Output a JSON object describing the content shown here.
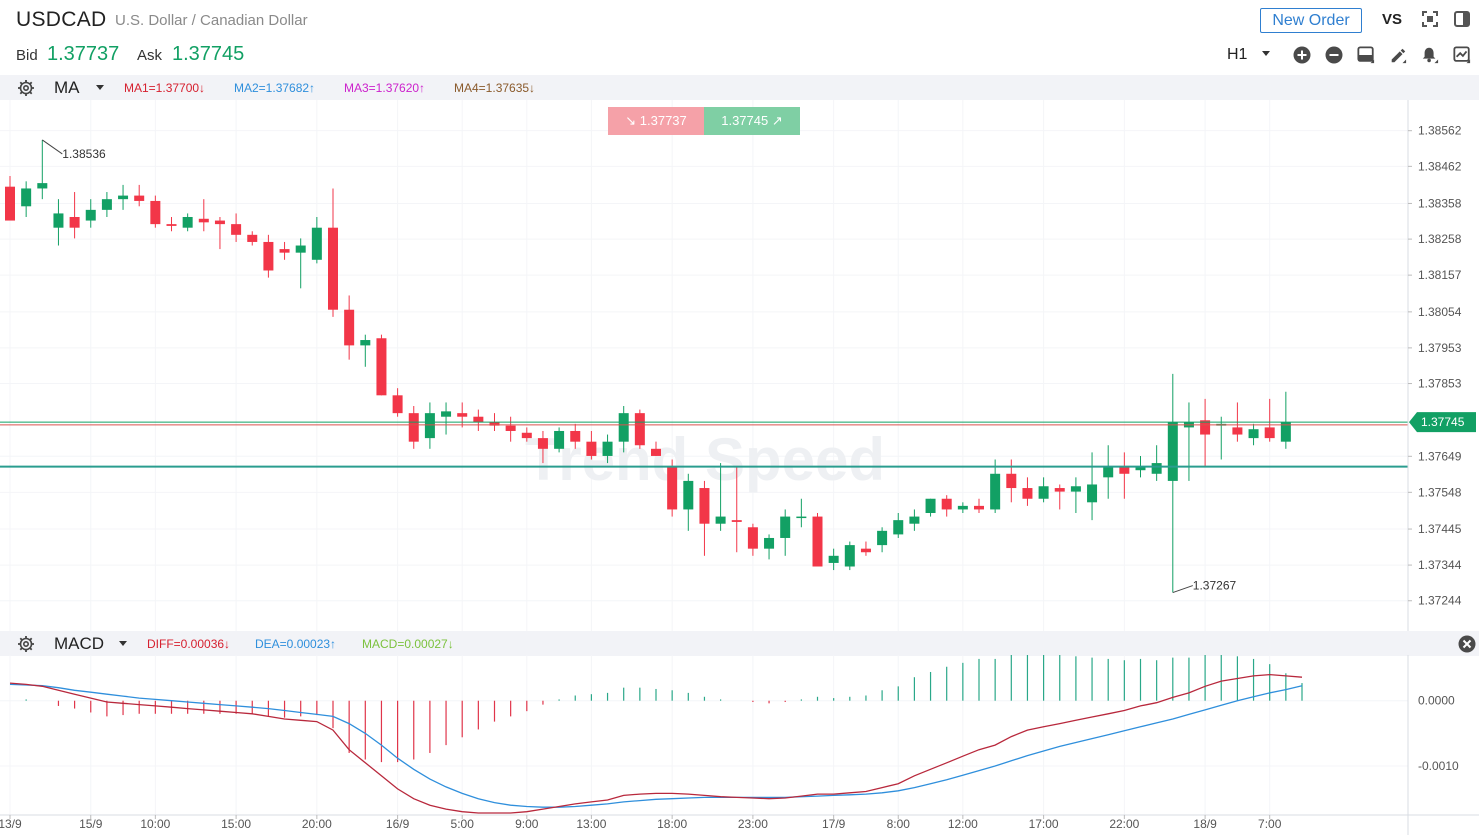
{
  "header": {
    "symbol": "USDCAD",
    "description": "U.S. Dollar / Canadian Dollar",
    "bid_label": "Bid",
    "bid_value": "1.37737",
    "ask_label": "Ask",
    "ask_value": "1.37745",
    "new_order_label": "New Order",
    "vs_label": "VS",
    "timeframe": "H1",
    "icons": [
      "fullscreen-icon",
      "panel-toggle-icon",
      "zoom-in-icon",
      "zoom-out-icon",
      "chart-type-icon",
      "draw-pen-icon",
      "alert-bell-icon",
      "indicator-icon"
    ]
  },
  "quote_box": {
    "bid": "1.37737",
    "ask": "1.37745"
  },
  "ma_bar": {
    "name": "MA",
    "ma1": "MA1=1.37700↓",
    "ma2": "MA2=1.37682↑",
    "ma3": "MA3=1.37620↑",
    "ma4": "MA4=1.37635↓"
  },
  "macd_bar": {
    "name": "MACD",
    "diff": "DIFF=0.00036↓",
    "dea": "DEA=0.00023↑",
    "macd": "MACD=0.00027↓"
  },
  "watermark": "Trend Speed",
  "colors": {
    "up": "#12a064",
    "down": "#f23648",
    "ma1": "#d6202f",
    "ma2": "#2f8fdc",
    "ma3": "#cc22cc",
    "ma4": "#8a5a2b",
    "price_line": "#2a9d8f"
  },
  "chart_data": [
    {
      "type": "candlestick",
      "title": "USDCAD",
      "timeframe": "H1",
      "ylim": [
        1.3719,
        1.3862
      ],
      "y_ticks": [
        "1.38562",
        "1.38462",
        "1.38358",
        "1.38258",
        "1.38157",
        "1.38054",
        "1.37953",
        "1.37853",
        "1.37649",
        "1.37548",
        "1.37445",
        "1.37344",
        "1.37244"
      ],
      "x_ticks": [
        {
          "i": 0,
          "label": "13/9"
        },
        {
          "i": 5,
          "label": "15/9"
        },
        {
          "i": 9,
          "label": "10:00"
        },
        {
          "i": 14,
          "label": "15:00"
        },
        {
          "i": 19,
          "label": "20:00"
        },
        {
          "i": 24,
          "label": "16/9"
        },
        {
          "i": 28,
          "label": "5:00"
        },
        {
          "i": 32,
          "label": "9:00"
        },
        {
          "i": 36,
          "label": "13:00"
        },
        {
          "i": 41,
          "label": "18:00"
        },
        {
          "i": 46,
          "label": "23:00"
        },
        {
          "i": 51,
          "label": "17/9"
        },
        {
          "i": 55,
          "label": "8:00"
        },
        {
          "i": 59,
          "label": "12:00"
        },
        {
          "i": 64,
          "label": "17:00"
        },
        {
          "i": 69,
          "label": "22:00"
        },
        {
          "i": 74,
          "label": "18/9"
        },
        {
          "i": 78,
          "label": "7:00"
        }
      ],
      "current_price_label": "1.37745",
      "current_price": 1.37745,
      "bid_line": 1.37737,
      "ma_line": 1.3762,
      "high_marker": {
        "i": 2,
        "value": 1.38536,
        "label": "1.38536"
      },
      "low_marker": {
        "i": 72,
        "value": 1.37267,
        "label": "1.37267"
      },
      "candles": [
        [
          1.38405,
          1.38435,
          1.3831,
          1.3831
        ],
        [
          1.3835,
          1.3842,
          1.3832,
          1.384
        ],
        [
          1.384,
          1.38536,
          1.3837,
          1.38415
        ],
        [
          1.3829,
          1.3837,
          1.3824,
          1.3833
        ],
        [
          1.3832,
          1.3839,
          1.3826,
          1.3829
        ],
        [
          1.3831,
          1.3837,
          1.3829,
          1.3834
        ],
        [
          1.3834,
          1.3839,
          1.3832,
          1.3837
        ],
        [
          1.3837,
          1.3841,
          1.3834,
          1.3838
        ],
        [
          1.3838,
          1.3841,
          1.3835,
          1.38365
        ],
        [
          1.38365,
          1.3838,
          1.3829,
          1.383
        ],
        [
          1.383,
          1.3832,
          1.3828,
          1.38295
        ],
        [
          1.3829,
          1.3833,
          1.3828,
          1.3832
        ],
        [
          1.38315,
          1.3837,
          1.3828,
          1.38305
        ],
        [
          1.3831,
          1.3832,
          1.3823,
          1.383
        ],
        [
          1.383,
          1.3833,
          1.3825,
          1.3827
        ],
        [
          1.3827,
          1.3828,
          1.3824,
          1.3825
        ],
        [
          1.3825,
          1.3827,
          1.3815,
          1.3817
        ],
        [
          1.3823,
          1.3825,
          1.382,
          1.3822
        ],
        [
          1.3822,
          1.3826,
          1.3812,
          1.3824
        ],
        [
          1.382,
          1.3832,
          1.3819,
          1.3829
        ],
        [
          1.3829,
          1.384,
          1.3804,
          1.3806
        ],
        [
          1.3806,
          1.381,
          1.3792,
          1.3796
        ],
        [
          1.3796,
          1.3799,
          1.379,
          1.37975
        ],
        [
          1.3798,
          1.3799,
          1.3782,
          1.3782
        ],
        [
          1.3782,
          1.3784,
          1.3776,
          1.3777
        ],
        [
          1.3777,
          1.3779,
          1.3767,
          1.3769
        ],
        [
          1.377,
          1.378,
          1.3767,
          1.3777
        ],
        [
          1.3776,
          1.378,
          1.3771,
          1.37775
        ],
        [
          1.3777,
          1.378,
          1.3773,
          1.3776
        ],
        [
          1.3776,
          1.3778,
          1.3772,
          1.37745
        ],
        [
          1.37745,
          1.3777,
          1.3772,
          1.37735
        ],
        [
          1.37735,
          1.3776,
          1.3769,
          1.3772
        ],
        [
          1.37715,
          1.3773,
          1.3769,
          1.377
        ],
        [
          1.377,
          1.3772,
          1.3763,
          1.3767
        ],
        [
          1.3767,
          1.3773,
          1.3766,
          1.3772
        ],
        [
          1.3772,
          1.3774,
          1.3767,
          1.3769
        ],
        [
          1.3769,
          1.3772,
          1.3764,
          1.3765
        ],
        [
          1.3765,
          1.3771,
          1.3763,
          1.3769
        ],
        [
          1.3769,
          1.3779,
          1.3766,
          1.3777
        ],
        [
          1.3777,
          1.3778,
          1.3767,
          1.3768
        ],
        [
          1.3767,
          1.3769,
          1.3765,
          1.3765
        ],
        [
          1.3762,
          1.3764,
          1.3748,
          1.375
        ],
        [
          1.375,
          1.376,
          1.3744,
          1.3758
        ],
        [
          1.3756,
          1.3758,
          1.3737,
          1.3746
        ],
        [
          1.3746,
          1.3763,
          1.3744,
          1.3748
        ],
        [
          1.3747,
          1.3762,
          1.3738,
          1.37465
        ],
        [
          1.3745,
          1.3746,
          1.3737,
          1.3739
        ],
        [
          1.3739,
          1.3743,
          1.3736,
          1.3742
        ],
        [
          1.3742,
          1.375,
          1.3737,
          1.3748
        ],
        [
          1.3748,
          1.3753,
          1.3745,
          1.3748
        ],
        [
          1.3748,
          1.3749,
          1.3734,
          1.3734
        ],
        [
          1.3735,
          1.3739,
          1.3733,
          1.3737
        ],
        [
          1.3734,
          1.3741,
          1.3733,
          1.374
        ],
        [
          1.3739,
          1.3741,
          1.3737,
          1.3738
        ],
        [
          1.374,
          1.3745,
          1.3738,
          1.3744
        ],
        [
          1.3743,
          1.3749,
          1.3742,
          1.3747
        ],
        [
          1.3746,
          1.375,
          1.3744,
          1.3748
        ],
        [
          1.3749,
          1.3753,
          1.3748,
          1.3753
        ],
        [
          1.3753,
          1.3754,
          1.3748,
          1.375
        ],
        [
          1.375,
          1.3752,
          1.3749,
          1.3751
        ],
        [
          1.3751,
          1.3753,
          1.3749,
          1.375
        ],
        [
          1.375,
          1.3764,
          1.3749,
          1.376
        ],
        [
          1.376,
          1.3764,
          1.3752,
          1.3756
        ],
        [
          1.3756,
          1.3759,
          1.3751,
          1.3753
        ],
        [
          1.3753,
          1.3759,
          1.3752,
          1.37565
        ],
        [
          1.3756,
          1.3757,
          1.375,
          1.3755
        ],
        [
          1.3755,
          1.3759,
          1.3749,
          1.37565
        ],
        [
          1.3752,
          1.3766,
          1.3747,
          1.3757
        ],
        [
          1.3759,
          1.3768,
          1.3753,
          1.3762
        ],
        [
          1.3762,
          1.3766,
          1.3753,
          1.376
        ],
        [
          1.3761,
          1.3765,
          1.3759,
          1.3762
        ],
        [
          1.376,
          1.3768,
          1.3758,
          1.3763
        ],
        [
          1.3758,
          1.3788,
          1.37267,
          1.37745
        ],
        [
          1.3773,
          1.378,
          1.3758,
          1.37745
        ],
        [
          1.3775,
          1.3781,
          1.3762,
          1.3771
        ],
        [
          1.37735,
          1.3776,
          1.3764,
          1.3774
        ],
        [
          1.3773,
          1.378,
          1.3769,
          1.3771
        ],
        [
          1.377,
          1.3774,
          1.3768,
          1.37725
        ],
        [
          1.3773,
          1.3781,
          1.3769,
          1.377
        ],
        [
          1.3769,
          1.3783,
          1.3767,
          1.37745
        ]
      ]
    },
    {
      "type": "macd",
      "ylim": [
        -0.00175,
        0.0007
      ],
      "y_ticks": [
        "0.0000",
        "-0.0010"
      ],
      "diff": [
        0.00027,
        0.00025,
        0.00022,
        0.00016,
        0.0001,
        4e-05,
        -2e-05,
        -4e-05,
        -6e-05,
        -8e-05,
        -0.0001,
        -0.00012,
        -0.00014,
        -0.00016,
        -0.00018,
        -0.0002,
        -0.00024,
        -0.00028,
        -0.0003,
        -0.00032,
        -0.00045,
        -0.00075,
        -0.00095,
        -0.00115,
        -0.00135,
        -0.0015,
        -0.0016,
        -0.00166,
        -0.0017,
        -0.00172,
        -0.00172,
        -0.00172,
        -0.0017,
        -0.00166,
        -0.00162,
        -0.00158,
        -0.00155,
        -0.00152,
        -0.00145,
        -0.00143,
        -0.00142,
        -0.00142,
        -0.00143,
        -0.00145,
        -0.00147,
        -0.00148,
        -0.00149,
        -0.0015,
        -0.00149,
        -0.00146,
        -0.00143,
        -0.00143,
        -0.00141,
        -0.00139,
        -0.00133,
        -0.00127,
        -0.00115,
        -0.00105,
        -0.00095,
        -0.00085,
        -0.00075,
        -0.00068,
        -0.00055,
        -0.00045,
        -0.0004,
        -0.00035,
        -0.0003,
        -0.00025,
        -0.0002,
        -0.00015,
        -8e-05,
        -3e-05,
        5e-05,
        0.00012,
        0.00022,
        0.0003,
        0.00034,
        0.00038,
        0.0004,
        0.00038,
        0.00036
      ],
      "dea": [
        0.00025,
        0.00024,
        0.00023,
        0.0002,
        0.00016,
        0.00013,
        0.0001,
        7e-05,
        4e-05,
        2e-05,
        0.0,
        -2e-05,
        -4e-05,
        -6e-05,
        -8e-05,
        -0.0001,
        -0.00012,
        -0.00015,
        -0.00018,
        -0.00021,
        -0.00024,
        -0.00035,
        -0.0005,
        -0.00068,
        -0.00088,
        -0.00105,
        -0.0012,
        -0.00132,
        -0.00142,
        -0.0015,
        -0.00156,
        -0.0016,
        -0.00162,
        -0.00163,
        -0.00163,
        -0.00162,
        -0.0016,
        -0.00158,
        -0.00155,
        -0.00153,
        -0.00151,
        -0.0015,
        -0.00149,
        -0.00148,
        -0.00148,
        -0.00148,
        -0.00148,
        -0.00148,
        -0.00148,
        -0.00147,
        -0.00146,
        -0.00145,
        -0.00144,
        -0.00143,
        -0.00141,
        -0.00138,
        -0.00133,
        -0.00127,
        -0.00121,
        -0.00114,
        -0.00107,
        -0.001,
        -0.00092,
        -0.00084,
        -0.00077,
        -0.0007,
        -0.00064,
        -0.00058,
        -0.00052,
        -0.00046,
        -0.0004,
        -0.00034,
        -0.00028,
        -0.00021,
        -0.00014,
        -7e-05,
        0.0,
        6e-05,
        0.00012,
        0.00017,
        0.00023
      ],
      "macd_hist": [
        0.0,
        2e-05,
        0.0,
        -8e-05,
        -0.00012,
        -0.00018,
        -0.00024,
        -0.00022,
        -0.0002,
        -0.0002,
        -0.0002,
        -0.0002,
        -0.0002,
        -0.0002,
        -0.0002,
        -0.0002,
        -0.00024,
        -0.00026,
        -0.00024,
        -0.00022,
        -0.00042,
        -0.0008,
        -0.0009,
        -0.00094,
        -0.00094,
        -0.0009,
        -0.0008,
        -0.00068,
        -0.00056,
        -0.00044,
        -0.00032,
        -0.00024,
        -0.00016,
        -6e-05,
        2e-05,
        8e-05,
        0.0001,
        0.00012,
        0.0002,
        0.0002,
        0.00018,
        0.00016,
        0.00012,
        6e-05,
        2e-05,
        0.0,
        -2e-05,
        -4e-05,
        -2e-05,
        2e-05,
        6e-05,
        4e-05,
        6e-05,
        8e-05,
        0.00016,
        0.00022,
        0.00036,
        0.00044,
        0.00052,
        0.00058,
        0.00064,
        0.00064,
        0.00074,
        0.00078,
        0.00074,
        0.0007,
        0.00068,
        0.00066,
        0.00064,
        0.00062,
        0.00064,
        0.00062,
        0.00066,
        0.00066,
        0.00072,
        0.00074,
        0.00068,
        0.00064,
        0.00056,
        0.00042,
        0.00027
      ]
    }
  ]
}
